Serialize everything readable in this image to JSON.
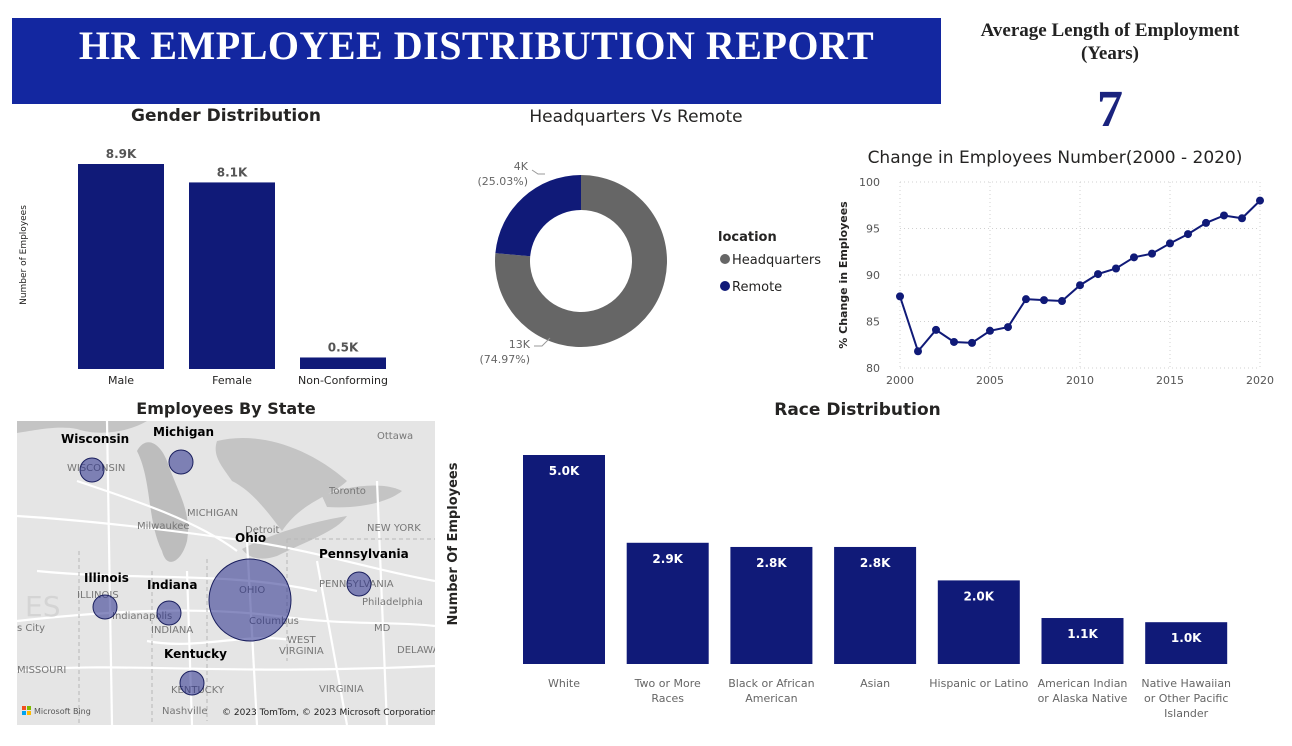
{
  "header": {
    "title": "HR EMPLOYEE DISTRIBUTION REPORT"
  },
  "kpi": {
    "title": "Average Length of Employment (Years)",
    "value": "7"
  },
  "colors": {
    "navy": "#101a78",
    "banner": "#1327a0",
    "gray": "#666666"
  },
  "chart_data": [
    {
      "id": "gender",
      "type": "bar",
      "title": "Gender Distribution",
      "ylabel": "Number of Employees",
      "categories": [
        "Male",
        "Female",
        "Non-Conforming"
      ],
      "values": [
        8.9,
        8.1,
        0.5
      ],
      "value_labels": [
        "8.9K",
        "8.1K",
        "0.5K"
      ],
      "unit": "thousands"
    },
    {
      "id": "location",
      "type": "pie",
      "title": "Headquarters Vs Remote",
      "legend_title": "location",
      "legend_position": "right",
      "slices": [
        {
          "name": "Headquarters",
          "value": 13,
          "label": "13K",
          "pct": "(74.97%)",
          "color": "#666666"
        },
        {
          "name": "Remote",
          "value": 4,
          "label": "4K",
          "pct": "(25.03%)",
          "color": "#101a78"
        }
      ]
    },
    {
      "id": "change",
      "type": "line",
      "title": "Change in Employees Number(2000 - 2020)",
      "ylabel": "% Change in Employees",
      "x": [
        2000,
        2001,
        2002,
        2003,
        2004,
        2005,
        2006,
        2007,
        2008,
        2009,
        2010,
        2011,
        2012,
        2013,
        2014,
        2015,
        2016,
        2017,
        2018,
        2019,
        2020
      ],
      "y": [
        87.7,
        81.8,
        84.1,
        82.8,
        82.7,
        84.0,
        84.4,
        87.4,
        87.3,
        87.2,
        88.9,
        90.1,
        90.7,
        91.9,
        92.3,
        93.4,
        94.4,
        95.6,
        96.4,
        96.1,
        98.0
      ],
      "xticks": [
        "2000",
        "2005",
        "2010",
        "2015",
        "2020"
      ],
      "yticks": [
        "80",
        "85",
        "90",
        "95",
        "100"
      ],
      "xlim": [
        2000,
        2020
      ],
      "ylim": [
        80,
        100
      ],
      "grid": true
    },
    {
      "id": "race",
      "type": "bar",
      "title": "Race Distribution",
      "ylabel": "Number Of Employees",
      "categories": [
        [
          "White"
        ],
        [
          "Two or More",
          "Races"
        ],
        [
          "Black or African",
          "American"
        ],
        [
          "Asian"
        ],
        [
          "Hispanic or Latino"
        ],
        [
          "American Indian",
          "or Alaska Native"
        ],
        [
          "Native Hawaiian",
          "or Other Pacific",
          "Islander"
        ]
      ],
      "values": [
        5.0,
        2.9,
        2.8,
        2.8,
        2.0,
        1.1,
        1.0
      ],
      "value_labels": [
        "5.0K",
        "2.9K",
        "2.8K",
        "2.8K",
        "2.0K",
        "1.1K",
        "1.0K"
      ],
      "unit": "thousands"
    }
  ],
  "map": {
    "title": "Employees By State",
    "states": [
      {
        "name": "Wisconsin",
        "size": "small"
      },
      {
        "name": "Michigan",
        "size": "small"
      },
      {
        "name": "Ohio",
        "size": "large"
      },
      {
        "name": "Pennsylvania",
        "size": "small"
      },
      {
        "name": "Illinois",
        "size": "small"
      },
      {
        "name": "Indiana",
        "size": "small"
      },
      {
        "name": "Kentucky",
        "size": "small"
      }
    ],
    "place_labels": [
      "Ottawa",
      "WISCONSIN",
      "MICHIGAN",
      "Toronto",
      "Milwaukee",
      "Detroit",
      "NEW YORK",
      "ILLINOIS",
      "PENNSYLVANIA",
      "Indianapolis",
      "OHIO",
      "Philadelphia",
      "INDIANA",
      "Columbus",
      "MD",
      "WEST",
      "VIRGINIA",
      "DELAWA",
      "MISSOURI",
      "VIRGINIA",
      "KENTUCKY",
      "Nashville",
      "s City",
      "ES"
    ],
    "brand": "Microsoft Bing",
    "attribution": "© 2023 TomTom, © 2023 Microsoft Corporation"
  }
}
